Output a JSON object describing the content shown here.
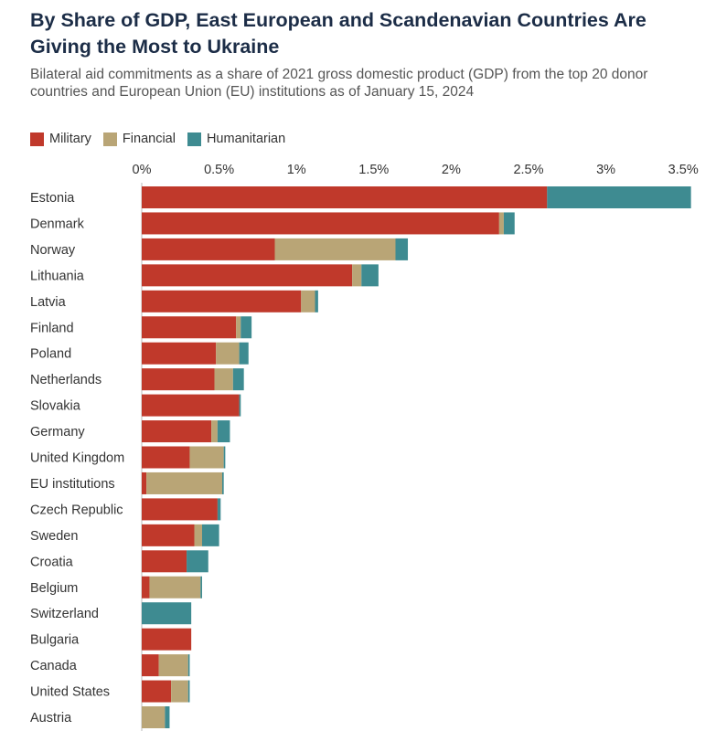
{
  "title": "By Share of GDP, East European and Scandenavian Countries Are Giving the Most to Ukraine",
  "subtitle": "Bilateral aid commitments as a share of 2021 gross domestic product (GDP) from the top 20 donor countries and European Union (EU) institutions as of January 15, 2024",
  "legend": [
    {
      "label": "Military",
      "color": "#c0392b"
    },
    {
      "label": "Financial",
      "color": "#b9a576"
    },
    {
      "label": "Humanitarian",
      "color": "#3e8b91"
    }
  ],
  "chart_data": {
    "type": "bar",
    "orientation": "horizontal",
    "stacked": true,
    "xlim": [
      0,
      3.5
    ],
    "x_ticks": [
      0,
      0.5,
      1,
      1.5,
      2,
      2.5,
      3,
      3.5
    ],
    "x_tick_labels": [
      "0%",
      "0.5%",
      "1%",
      "1.5%",
      "2%",
      "2.5%",
      "3%",
      "3.5%"
    ],
    "x_axis_position": "top",
    "grid": true,
    "legend_position": "top-left",
    "categories": [
      "Estonia",
      "Denmark",
      "Norway",
      "Lithuania",
      "Latvia",
      "Finland",
      "Poland",
      "Netherlands",
      "Slovakia",
      "Germany",
      "United Kingdom",
      "EU institutions",
      "Czech Republic",
      "Sweden",
      "Croatia",
      "Belgium",
      "Switzerland",
      "Bulgaria",
      "Canada",
      "United States",
      "Austria"
    ],
    "series": [
      {
        "name": "Military",
        "color": "#c0392b",
        "values": [
          2.62,
          2.31,
          0.86,
          1.36,
          1.03,
          0.61,
          0.48,
          0.47,
          0.63,
          0.45,
          0.31,
          0.03,
          0.49,
          0.34,
          0.29,
          0.05,
          0.0,
          0.32,
          0.11,
          0.19,
          0.0
        ]
      },
      {
        "name": "Financial",
        "color": "#b9a576",
        "values": [
          0.0,
          0.03,
          0.78,
          0.06,
          0.09,
          0.03,
          0.15,
          0.12,
          0.0,
          0.04,
          0.22,
          0.49,
          0.0,
          0.05,
          0.0,
          0.33,
          0.0,
          0.0,
          0.19,
          0.11,
          0.15
        ]
      },
      {
        "name": "Humanitarian",
        "color": "#3e8b91",
        "values": [
          0.93,
          0.07,
          0.08,
          0.11,
          0.02,
          0.07,
          0.06,
          0.07,
          0.01,
          0.08,
          0.01,
          0.01,
          0.02,
          0.11,
          0.14,
          0.01,
          0.32,
          0.0,
          0.01,
          0.01,
          0.03
        ]
      }
    ]
  }
}
